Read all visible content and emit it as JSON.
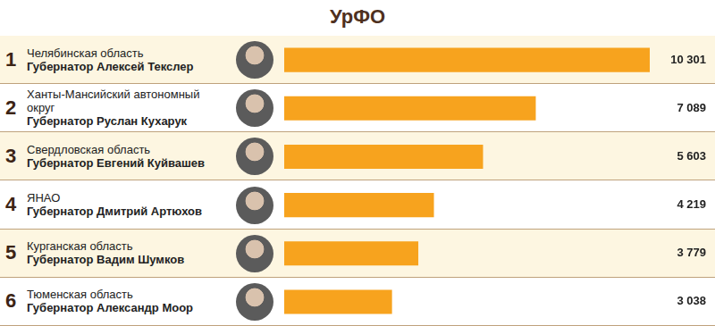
{
  "chart_data": {
    "type": "bar",
    "title": "УрФО",
    "orientation": "horizontal",
    "ranks": [
      1,
      2,
      3,
      4,
      5,
      6
    ],
    "categories": [
      "Челябинская область",
      "Ханты-Мансийский автономный округ",
      "Свердловская область",
      "ЯНАО",
      "Курганская область",
      "Тюменская область"
    ],
    "governors": [
      "Губернатор Алексей Текслер",
      "Губернатор Руслан Кухарук",
      "Губернатор Евгений Куйвашев",
      "Губернатор Дмитрий Артюхов",
      "Губернатор Вадим Шумков",
      "Губернатор Александр Моор"
    ],
    "values": [
      10301,
      7089,
      5603,
      4219,
      3779,
      3038
    ],
    "value_labels": [
      "10 301",
      "7 089",
      "5 603",
      "4 219",
      "3 779",
      "3 038"
    ],
    "color": "#f7a31e",
    "xlim": [
      0,
      10301
    ],
    "grid": false,
    "tick_labels": false,
    "data_labels": true
  }
}
